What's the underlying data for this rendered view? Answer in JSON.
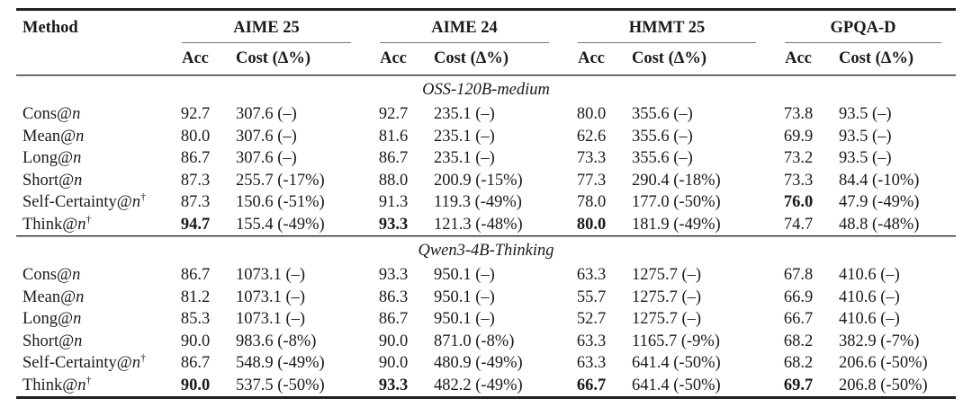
{
  "table": {
    "columns": {
      "method": "Method",
      "groups": [
        {
          "label": "AIME 25",
          "sub": [
            "Acc",
            "Cost (Δ%)"
          ]
        },
        {
          "label": "AIME 24",
          "sub": [
            "Acc",
            "Cost (Δ%)"
          ]
        },
        {
          "label": "HMMT 25",
          "sub": [
            "Acc",
            "Cost (Δ%)"
          ]
        },
        {
          "label": "GPQA-D",
          "sub": [
            "Acc",
            "Cost (Δ%)"
          ]
        }
      ]
    },
    "sections": [
      {
        "title": "OSS-120B-medium",
        "rows": [
          {
            "method": {
              "prefix": "Cons@",
              "var": "n",
              "sup": ""
            },
            "cells": [
              {
                "v": "92.7",
                "b": false
              },
              {
                "v": "307.6 (–)",
                "b": false
              },
              {
                "v": "92.7",
                "b": false
              },
              {
                "v": "235.1 (–)",
                "b": false
              },
              {
                "v": "80.0",
                "b": false
              },
              {
                "v": "355.6 (–)",
                "b": false
              },
              {
                "v": "73.8",
                "b": false
              },
              {
                "v": "93.5 (–)",
                "b": false
              }
            ]
          },
          {
            "method": {
              "prefix": "Mean@",
              "var": "n",
              "sup": ""
            },
            "cells": [
              {
                "v": "80.0",
                "b": false
              },
              {
                "v": "307.6 (–)",
                "b": false
              },
              {
                "v": "81.6",
                "b": false
              },
              {
                "v": "235.1 (–)",
                "b": false
              },
              {
                "v": "62.6",
                "b": false
              },
              {
                "v": "355.6 (–)",
                "b": false
              },
              {
                "v": "69.9",
                "b": false
              },
              {
                "v": "93.5 (–)",
                "b": false
              }
            ]
          },
          {
            "method": {
              "prefix": "Long@",
              "var": "n",
              "sup": ""
            },
            "cells": [
              {
                "v": "86.7",
                "b": false
              },
              {
                "v": "307.6 (–)",
                "b": false
              },
              {
                "v": "86.7",
                "b": false
              },
              {
                "v": "235.1 (–)",
                "b": false
              },
              {
                "v": "73.3",
                "b": false
              },
              {
                "v": "355.6 (–)",
                "b": false
              },
              {
                "v": "73.2",
                "b": false
              },
              {
                "v": "93.5 (–)",
                "b": false
              }
            ]
          },
          {
            "method": {
              "prefix": "Short@",
              "var": "n",
              "sup": ""
            },
            "cells": [
              {
                "v": "87.3",
                "b": false
              },
              {
                "v": "255.7 (-17%)",
                "b": false
              },
              {
                "v": "88.0",
                "b": false
              },
              {
                "v": "200.9 (-15%)",
                "b": false
              },
              {
                "v": "77.3",
                "b": false
              },
              {
                "v": "290.4 (-18%)",
                "b": false
              },
              {
                "v": "73.3",
                "b": false
              },
              {
                "v": "84.4 (-10%)",
                "b": false
              }
            ]
          },
          {
            "method": {
              "prefix": "Self-Certainty@",
              "var": "n",
              "sup": "†"
            },
            "cells": [
              {
                "v": "87.3",
                "b": false
              },
              {
                "v": "150.6 (-51%)",
                "b": false
              },
              {
                "v": "91.3",
                "b": false
              },
              {
                "v": "119.3 (-49%)",
                "b": false
              },
              {
                "v": "78.0",
                "b": false
              },
              {
                "v": "177.0 (-50%)",
                "b": false
              },
              {
                "v": "76.0",
                "b": true
              },
              {
                "v": "47.9 (-49%)",
                "b": false
              }
            ]
          },
          {
            "method": {
              "prefix": "Think@",
              "var": "n",
              "sup": "†"
            },
            "cells": [
              {
                "v": "94.7",
                "b": true
              },
              {
                "v": "155.4 (-49%)",
                "b": false
              },
              {
                "v": "93.3",
                "b": true
              },
              {
                "v": "121.3 (-48%)",
                "b": false
              },
              {
                "v": "80.0",
                "b": true
              },
              {
                "v": "181.9 (-49%)",
                "b": false
              },
              {
                "v": "74.7",
                "b": false
              },
              {
                "v": "48.8 (-48%)",
                "b": false
              }
            ]
          }
        ]
      },
      {
        "title": "Qwen3-4B-Thinking",
        "rows": [
          {
            "method": {
              "prefix": "Cons@",
              "var": "n",
              "sup": ""
            },
            "cells": [
              {
                "v": "86.7",
                "b": false
              },
              {
                "v": "1073.1 (–)",
                "b": false
              },
              {
                "v": "93.3",
                "b": false
              },
              {
                "v": "950.1 (–)",
                "b": false
              },
              {
                "v": "63.3",
                "b": false
              },
              {
                "v": "1275.7 (–)",
                "b": false
              },
              {
                "v": "67.8",
                "b": false
              },
              {
                "v": "410.6 (–)",
                "b": false
              }
            ]
          },
          {
            "method": {
              "prefix": "Mean@",
              "var": "n",
              "sup": ""
            },
            "cells": [
              {
                "v": "81.2",
                "b": false
              },
              {
                "v": "1073.1 (–)",
                "b": false
              },
              {
                "v": "86.3",
                "b": false
              },
              {
                "v": "950.1 (–)",
                "b": false
              },
              {
                "v": "55.7",
                "b": false
              },
              {
                "v": "1275.7 (–)",
                "b": false
              },
              {
                "v": "66.9",
                "b": false
              },
              {
                "v": "410.6 (–)",
                "b": false
              }
            ]
          },
          {
            "method": {
              "prefix": "Long@",
              "var": "n",
              "sup": ""
            },
            "cells": [
              {
                "v": "85.3",
                "b": false
              },
              {
                "v": "1073.1 (–)",
                "b": false
              },
              {
                "v": "86.7",
                "b": false
              },
              {
                "v": "950.1 (–)",
                "b": false
              },
              {
                "v": "52.7",
                "b": false
              },
              {
                "v": "1275.7 (–)",
                "b": false
              },
              {
                "v": "66.7",
                "b": false
              },
              {
                "v": "410.6 (–)",
                "b": false
              }
            ]
          },
          {
            "method": {
              "prefix": "Short@",
              "var": "n",
              "sup": ""
            },
            "cells": [
              {
                "v": "90.0",
                "b": false
              },
              {
                "v": "983.6 (-8%)",
                "b": false
              },
              {
                "v": "90.0",
                "b": false
              },
              {
                "v": "871.0 (-8%)",
                "b": false
              },
              {
                "v": "63.3",
                "b": false
              },
              {
                "v": "1165.7 (-9%)",
                "b": false
              },
              {
                "v": "68.2",
                "b": false
              },
              {
                "v": "382.9 (-7%)",
                "b": false
              }
            ]
          },
          {
            "method": {
              "prefix": "Self-Certainty@",
              "var": "n",
              "sup": "†"
            },
            "cells": [
              {
                "v": "86.7",
                "b": false
              },
              {
                "v": "548.9 (-49%)",
                "b": false
              },
              {
                "v": "90.0",
                "b": false
              },
              {
                "v": "480.9 (-49%)",
                "b": false
              },
              {
                "v": "63.3",
                "b": false
              },
              {
                "v": "641.4 (-50%)",
                "b": false
              },
              {
                "v": "68.2",
                "b": false
              },
              {
                "v": "206.6 (-50%)",
                "b": false
              }
            ]
          },
          {
            "method": {
              "prefix": "Think@",
              "var": "n",
              "sup": "†"
            },
            "cells": [
              {
                "v": "90.0",
                "b": true
              },
              {
                "v": "537.5 (-50%)",
                "b": false
              },
              {
                "v": "93.3",
                "b": true
              },
              {
                "v": "482.2 (-49%)",
                "b": false
              },
              {
                "v": "66.7",
                "b": true
              },
              {
                "v": "641.4 (-50%)",
                "b": false
              },
              {
                "v": "69.7",
                "b": true
              },
              {
                "v": "206.8 (-50%)",
                "b": false
              }
            ]
          }
        ]
      }
    ]
  }
}
